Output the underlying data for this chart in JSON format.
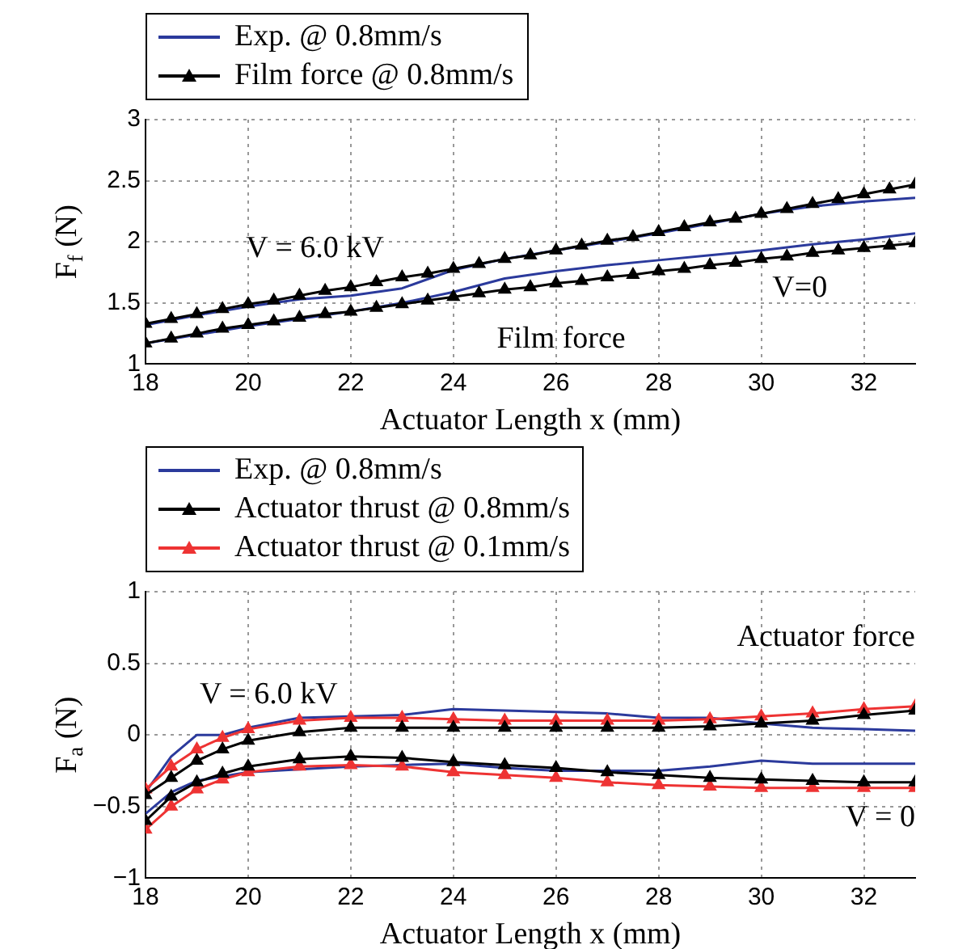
{
  "chart_data": [
    {
      "type": "line",
      "xlabel": "Actuator Length x (mm)",
      "ylabel": "F$_{f}$ (N)",
      "xlim": [
        18,
        33
      ],
      "xticks": [
        18,
        20,
        22,
        24,
        26,
        28,
        30,
        32
      ],
      "ylim": [
        1,
        3
      ],
      "yticks": [
        1,
        1.5,
        2,
        2.5,
        3
      ],
      "grid": true,
      "legend": "top left",
      "series": [
        {
          "name": "Exp. @ 0.8mm/s",
          "color": "#2b3a9c",
          "marker": "none",
          "x": [
            18,
            19,
            20,
            21,
            22,
            23,
            24,
            25,
            26,
            27,
            28,
            29,
            30,
            31,
            32,
            33
          ],
          "values": [
            1.32,
            1.4,
            1.47,
            1.53,
            1.56,
            1.62,
            1.77,
            1.86,
            1.93,
            2.0,
            2.07,
            2.15,
            2.23,
            2.29,
            2.33,
            2.36
          ]
        },
        {
          "color": "#2b3a9c",
          "marker": "none",
          "x": [
            18,
            19,
            20,
            21,
            22,
            23,
            24,
            25,
            26,
            27,
            28,
            29,
            30,
            31,
            32,
            33
          ],
          "values": [
            1.17,
            1.24,
            1.31,
            1.37,
            1.43,
            1.5,
            1.59,
            1.7,
            1.76,
            1.81,
            1.85,
            1.89,
            1.93,
            1.98,
            2.02,
            2.07
          ]
        },
        {
          "name": "Film force @ 0.8mm/s",
          "color": "#000000",
          "marker": "triangle",
          "x": [
            18,
            18.5,
            19,
            19.5,
            20,
            20.5,
            21,
            21.5,
            22,
            22.5,
            23,
            23.5,
            24,
            24.5,
            25,
            25.5,
            26,
            26.5,
            27,
            27.5,
            28,
            28.5,
            29,
            29.5,
            30,
            30.5,
            31,
            31.5,
            32,
            32.5,
            33
          ],
          "values": [
            1.33,
            1.37,
            1.41,
            1.45,
            1.49,
            1.52,
            1.56,
            1.6,
            1.63,
            1.67,
            1.71,
            1.74,
            1.78,
            1.82,
            1.86,
            1.89,
            1.93,
            1.97,
            2.01,
            2.04,
            2.08,
            2.12,
            2.16,
            2.19,
            2.23,
            2.27,
            2.31,
            2.35,
            2.39,
            2.43,
            2.47
          ]
        },
        {
          "color": "#000000",
          "marker": "triangle",
          "x": [
            18,
            18.5,
            19,
            19.5,
            20,
            20.5,
            21,
            21.5,
            22,
            22.5,
            23,
            23.5,
            24,
            24.5,
            25,
            25.5,
            26,
            26.5,
            27,
            27.5,
            28,
            28.5,
            29,
            29.5,
            30,
            30.5,
            31,
            31.5,
            32,
            32.5,
            33
          ],
          "values": [
            1.17,
            1.21,
            1.25,
            1.29,
            1.32,
            1.35,
            1.38,
            1.41,
            1.43,
            1.46,
            1.49,
            1.52,
            1.55,
            1.58,
            1.61,
            1.63,
            1.66,
            1.68,
            1.71,
            1.73,
            1.76,
            1.78,
            1.81,
            1.83,
            1.86,
            1.88,
            1.91,
            1.93,
            1.95,
            1.97,
            1.99
          ]
        }
      ],
      "annotations": [
        "V = 6.0 kV",
        "V=0",
        "Film force"
      ]
    },
    {
      "type": "line",
      "xlabel": "Actuator Length x (mm)",
      "ylabel": "F$_{a}$ (N)",
      "xlim": [
        18,
        33
      ],
      "xticks": [
        18,
        20,
        22,
        24,
        26,
        28,
        30,
        32
      ],
      "ylim": [
        -1,
        1
      ],
      "yticks": [
        {
          "value": -1,
          "label": "−1"
        },
        {
          "value": -0.5,
          "label": "−0.5"
        },
        0,
        0.5,
        1
      ],
      "grid": true,
      "legend": "top left",
      "series": [
        {
          "name": "Exp. @ 0.8mm/s",
          "color": "#2b3a9c",
          "marker": "none",
          "x": [
            18,
            18.5,
            19,
            19.5,
            20,
            21,
            22,
            23,
            24,
            25,
            26,
            27,
            28,
            29,
            30,
            31,
            32,
            33
          ],
          "values": [
            -0.4,
            -0.15,
            0.0,
            0.0,
            0.05,
            0.12,
            0.13,
            0.14,
            0.18,
            0.17,
            0.16,
            0.15,
            0.12,
            0.12,
            0.08,
            0.05,
            0.04,
            0.03
          ]
        },
        {
          "color": "#2b3a9c",
          "marker": "none",
          "x": [
            18,
            18.5,
            19,
            20,
            21,
            22,
            23,
            24,
            25,
            26,
            27,
            28,
            29,
            30,
            31,
            32,
            33
          ],
          "values": [
            -0.55,
            -0.4,
            -0.32,
            -0.26,
            -0.24,
            -0.22,
            -0.21,
            -0.2,
            -0.23,
            -0.25,
            -0.25,
            -0.25,
            -0.22,
            -0.18,
            -0.2,
            -0.2,
            -0.2
          ]
        },
        {
          "name": "Actuator thrust @ 0.8mm/s",
          "color": "#000000",
          "marker": "triangle",
          "x": [
            18,
            18.5,
            19,
            19.5,
            20,
            21,
            22,
            23,
            24,
            25,
            26,
            27,
            28,
            29,
            30,
            31,
            32,
            33
          ],
          "values": [
            -0.42,
            -0.3,
            -0.18,
            -0.1,
            -0.04,
            0.02,
            0.05,
            0.05,
            0.05,
            0.05,
            0.05,
            0.05,
            0.05,
            0.06,
            0.08,
            0.1,
            0.14,
            0.17
          ]
        },
        {
          "color": "#000000",
          "marker": "triangle",
          "x": [
            18,
            18.5,
            19,
            19.5,
            20,
            21,
            22,
            23,
            24,
            25,
            26,
            27,
            28,
            29,
            30,
            31,
            32,
            33
          ],
          "values": [
            -0.6,
            -0.43,
            -0.33,
            -0.27,
            -0.22,
            -0.17,
            -0.15,
            -0.16,
            -0.19,
            -0.21,
            -0.23,
            -0.26,
            -0.28,
            -0.3,
            -0.31,
            -0.32,
            -0.33,
            -0.33
          ]
        },
        {
          "name": "Actuator thrust @ 0.1mm/s",
          "color": "#ee3333",
          "marker": "triangle",
          "x": [
            18,
            18.5,
            19,
            19.5,
            20,
            21,
            22,
            23,
            24,
            25,
            26,
            27,
            28,
            29,
            30,
            31,
            32,
            33
          ],
          "values": [
            -0.38,
            -0.22,
            -0.1,
            -0.02,
            0.04,
            0.1,
            0.12,
            0.12,
            0.11,
            0.1,
            0.1,
            0.1,
            0.1,
            0.11,
            0.13,
            0.15,
            0.18,
            0.2
          ]
        },
        {
          "color": "#ee3333",
          "marker": "triangle",
          "x": [
            18,
            18.5,
            19,
            19.5,
            20,
            21,
            22,
            23,
            24,
            25,
            26,
            27,
            28,
            29,
            30,
            31,
            32,
            33
          ],
          "values": [
            -0.66,
            -0.5,
            -0.38,
            -0.31,
            -0.26,
            -0.22,
            -0.21,
            -0.22,
            -0.26,
            -0.28,
            -0.3,
            -0.33,
            -0.35,
            -0.36,
            -0.37,
            -0.37,
            -0.37,
            -0.37
          ]
        }
      ],
      "annotations": [
        "V = 6.0 kV",
        "Actuator force",
        "V = 0"
      ]
    }
  ]
}
